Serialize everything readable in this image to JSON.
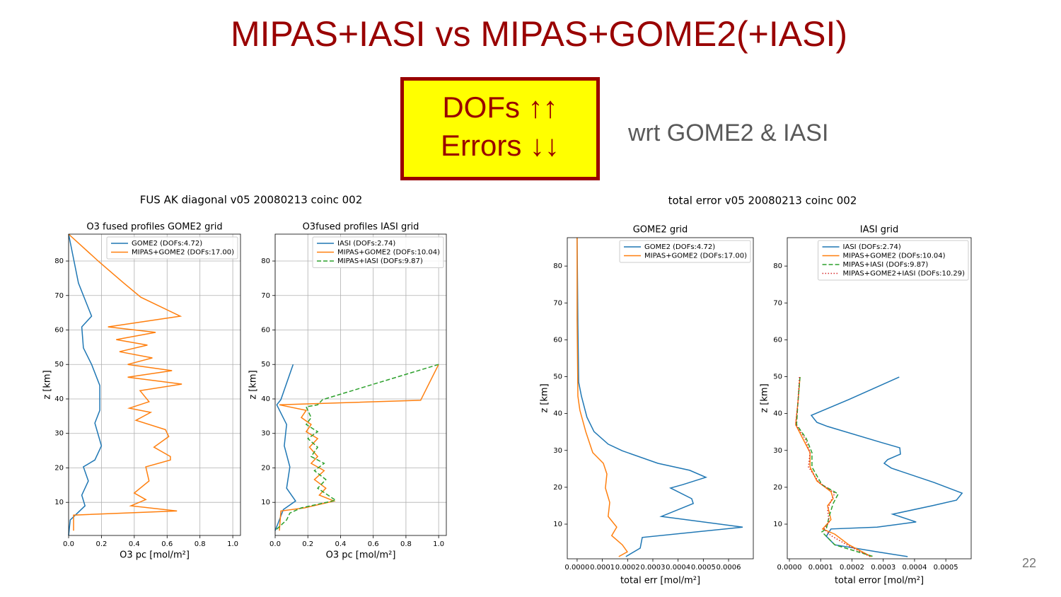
{
  "slide": {
    "title": "MIPAS+IASI vs MIPAS+GOME2(+IASI)",
    "box": [
      "DOFs ↑↑",
      "Errors ↓↓"
    ],
    "note": "wrt GOME2 & IASI",
    "page": "22",
    "figures": [
      "FUS AK diagonal v05 20080213 coinc 002",
      "total error v05 20080213 coinc 002"
    ]
  },
  "chart_data": [
    {
      "type": "line",
      "title": "O3 fused profiles GOME2 grid",
      "xlabel": "O3 pc [mol/m²]",
      "ylabel": "z [km]",
      "xlim": [
        0,
        1.047
      ],
      "ylim": [
        0.4,
        87.8
      ],
      "xticks": [
        {
          "value": 0,
          "label": "0.0"
        },
        {
          "value": 0.2,
          "label": "0.2"
        },
        {
          "value": 0.4,
          "label": "0.4"
        },
        {
          "value": 0.6,
          "label": "0.6"
        },
        {
          "value": 0.8,
          "label": "0.8"
        },
        {
          "value": 1,
          "label": "1.0"
        }
      ],
      "yticks": [
        10,
        20,
        30,
        40,
        50,
        60,
        70,
        80
      ],
      "grid": true,
      "legend": "upper right",
      "series": [
        {
          "name": "GOME2 (DOFs:4.72)",
          "color": "#1f77b4",
          "style": "solid",
          "x": [
            0,
            0.06,
            0.14,
            0.08,
            0.09,
            0.14,
            0.19,
            0.19,
            0.16,
            0.2,
            0.16,
            0.09,
            0.12,
            0.08,
            0.1,
            0.01,
            0
          ],
          "y": [
            87.8,
            73.6,
            64.0,
            60.9,
            54.8,
            50.0,
            43.9,
            36.7,
            33.0,
            26.4,
            22.3,
            20.3,
            16.2,
            12.1,
            9.0,
            4.9,
            0.4
          ]
        },
        {
          "name": "MIPAS+GOME2 (DOFs:17.00)",
          "color": "#ff7f0e",
          "style": "solid",
          "x": [
            0,
            0.185,
            0.336,
            0.44,
            0.68,
            0.24,
            0.53,
            0.29,
            0.48,
            0.31,
            0.51,
            0.36,
            0.63,
            0.36,
            0.69,
            0.435,
            0.49,
            0.37,
            0.5,
            0.41,
            0.59,
            0.61,
            0.52,
            0.62,
            0.62,
            0.47,
            0.49,
            0.4,
            0.47,
            0.38,
            0.66,
            0.03,
            0.03
          ],
          "y": [
            87.8,
            79.8,
            73.6,
            69.5,
            64.0,
            60.9,
            59.3,
            57.2,
            55.6,
            53.7,
            51.9,
            50.0,
            48.2,
            46.3,
            44.3,
            42.4,
            39.2,
            37.3,
            36.1,
            33.8,
            31.1,
            29.1,
            26.0,
            23.3,
            22.3,
            20.3,
            16.2,
            12.7,
            10.8,
            9.0,
            7.5,
            6.3,
            1.8
          ]
        }
      ]
    },
    {
      "type": "line",
      "title": "O3fused profiles IASI grid",
      "xlabel": "O3 pc [mol/m²]",
      "ylabel": "z [km]",
      "xlim": [
        0,
        1.047
      ],
      "ylim": [
        0.4,
        87.8
      ],
      "xticks": [
        {
          "value": 0,
          "label": "0.0"
        },
        {
          "value": 0.2,
          "label": "0.2"
        },
        {
          "value": 0.4,
          "label": "0.4"
        },
        {
          "value": 0.6,
          "label": "0.6"
        },
        {
          "value": 0.8,
          "label": "0.8"
        },
        {
          "value": 1,
          "label": "1.0"
        }
      ],
      "yticks": [
        10,
        20,
        30,
        40,
        50,
        60,
        70,
        80
      ],
      "grid": true,
      "legend": "upper right",
      "series": [
        {
          "name": "IASI (DOFs:2.74)",
          "color": "#1f77b4",
          "style": "solid",
          "x": [
            0.11,
            0.035,
            0.01,
            0.07,
            0.056,
            0.09,
            0.07,
            0.125,
            0.05,
            0.017,
            0
          ],
          "y": [
            50.0,
            39.8,
            38.3,
            32.6,
            26.4,
            20.3,
            14.1,
            10.4,
            7.9,
            3.8,
            1.8
          ]
        },
        {
          "name": "MIPAS+GOME2 (DOFs:10.04)",
          "color": "#ff7f0e",
          "style": "solid",
          "x": [
            1.0,
            0.89,
            0.026,
            0.19,
            0.16,
            0.22,
            0.19,
            0.26,
            0.21,
            0.26,
            0.22,
            0.3,
            0.24,
            0.31,
            0.27,
            0.36,
            0.18,
            0.035,
            0.026
          ],
          "y": [
            50.0,
            39.6,
            38.3,
            36.7,
            34.6,
            32.6,
            30.5,
            28.5,
            26.0,
            23.3,
            21.3,
            19.2,
            16.6,
            14.1,
            12.1,
            10.4,
            8.4,
            7.5,
            1.8
          ]
        },
        {
          "name": "MIPAS+IASI (DOFs:9.87)",
          "color": "#2ca02c",
          "style": "dashed",
          "x": [
            1.0,
            0.29,
            0.26,
            0.19,
            0.22,
            0.19,
            0.26,
            0.2,
            0.26,
            0.22,
            0.3,
            0.24,
            0.31,
            0.26,
            0.37,
            0.16,
            0.09,
            0.07,
            0
          ],
          "y": [
            50.0,
            39.8,
            38.3,
            37.7,
            34.6,
            32.6,
            30.5,
            28.5,
            26.0,
            23.3,
            21.3,
            19.2,
            16.6,
            14.1,
            10.6,
            8.4,
            6.9,
            4.9,
            1.8
          ]
        }
      ]
    },
    {
      "type": "line",
      "title": "GOME2 grid",
      "xlabel": "total err [mol/m²]",
      "ylabel": "z [km]",
      "xlim": [
        -3.9e-05,
        0.000698
      ],
      "ylim": [
        0.6,
        87.7
      ],
      "xticks": [
        {
          "value": 0,
          "label": "0.0000"
        },
        {
          "value": 0.0001,
          "label": "0.0001"
        },
        {
          "value": 0.0002,
          "label": "0.0002"
        },
        {
          "value": 0.0003,
          "label": "0.0003"
        },
        {
          "value": 0.0004,
          "label": "0.0004"
        },
        {
          "value": 0.0005,
          "label": "0.0005"
        },
        {
          "value": 0.0006,
          "label": "0.0006"
        }
      ],
      "yticks": [
        10,
        20,
        30,
        40,
        50,
        60,
        70,
        80
      ],
      "grid": false,
      "legend": "upper right",
      "series": [
        {
          "name": "GOME2 (DOFs:4.72)",
          "color": "#1f77b4",
          "style": "solid",
          "x": [
            0,
            3e-06,
            6e-06,
            1.7e-05,
            3.9e-05,
            6.7e-05,
            0.000123,
            0.000179,
            0.00032,
            0.000446,
            0.00051,
            0.000418,
            0.00037,
            0.000454,
            0.00046,
            0.000334,
            0.000656,
            0.000258,
            0.00025,
            0.000193
          ],
          "y": [
            87.7,
            63.9,
            48.5,
            44.7,
            39.0,
            35.1,
            31.7,
            29.9,
            26.5,
            24.6,
            22.7,
            20.7,
            19.8,
            16.9,
            15.6,
            12.1,
            9.2,
            6.4,
            3.5,
            1.2
          ]
        },
        {
          "name": "MIPAS+GOME2 (DOFs:17.00)",
          "color": "#ff7f0e",
          "style": "solid",
          "x": [
            0,
            0,
            3e-06,
            1.1e-05,
            3.4e-05,
            6.2e-05,
            0.000104,
            0.000118,
            0.000112,
            0.000129,
            0.000123,
            0.000157,
            0.000137,
            0.000179,
            0.000199,
            0.000165
          ],
          "y": [
            87.7,
            65.8,
            44.7,
            40.9,
            35.1,
            29.4,
            26.5,
            23.6,
            19.8,
            15.9,
            12.1,
            9.2,
            6.9,
            4.4,
            2.5,
            1.2
          ]
        }
      ]
    },
    {
      "type": "line",
      "title": "IASI grid",
      "xlabel": "total error [mol/m²]",
      "ylabel": "z [km]",
      "xlim": [
        -6.8e-06,
        0.000581
      ],
      "ylim": [
        0.6,
        87.7
      ],
      "xticks": [
        {
          "value": 0,
          "label": "0.0000"
        },
        {
          "value": 0.0001,
          "label": "0.0001"
        },
        {
          "value": 0.0002,
          "label": "0.0002"
        },
        {
          "value": 0.0003,
          "label": "0.0003"
        },
        {
          "value": 0.0004,
          "label": "0.0004"
        },
        {
          "value": 0.0005,
          "label": "0.0005"
        }
      ],
      "yticks": [
        10,
        20,
        30,
        40,
        50,
        60,
        70,
        80
      ],
      "grid": false,
      "legend": "upper right",
      "series": [
        {
          "name": "IASI (DOFs:2.74)",
          "color": "#1f77b4",
          "style": "solid",
          "x": [
            0.000351,
            0.00019,
            7e-05,
            8.8e-05,
            0.000122,
            0.000292,
            0.000353,
            0.000355,
            0.000314,
            0.000303,
            0.000326,
            0.000462,
            0.000552,
            0.000534,
            0.000457,
            0.00033,
            0.000405,
            0.00028,
            0.000133,
            0.000118,
            0.000145,
            0.00028,
            0.000378
          ],
          "y": [
            49.9,
            43.8,
            39.5,
            37.6,
            36.5,
            32.2,
            30.7,
            29.0,
            27.5,
            26.5,
            25.2,
            21.3,
            18.4,
            16.5,
            15.0,
            12.7,
            10.6,
            9.2,
            8.7,
            6.7,
            4.4,
            2.5,
            1.2
          ]
        },
        {
          "name": "MIPAS+GOME2 (DOFs:10.04)",
          "color": "#ff7f0e",
          "style": "solid",
          "x": [
            3.4e-05,
            2.7e-05,
            2e-05,
            4.3e-05,
            6.6e-05,
            6.6e-05,
            8.8e-05,
            0.000133,
            0.00014,
            0.000122,
            0.000133,
            0.000106,
            0.000145,
            0.00019,
            0.000262
          ],
          "y": [
            49.9,
            42.8,
            37.0,
            33.2,
            29.4,
            25.5,
            21.7,
            18.8,
            16.9,
            15.0,
            11.2,
            8.7,
            7.3,
            4.4,
            1.2
          ]
        },
        {
          "name": "MIPAS+IASI (DOFs:9.87)",
          "color": "#2ca02c",
          "style": "dashed",
          "x": [
            3.4e-05,
            2.7e-05,
            2.3e-05,
            5.4e-05,
            7.2e-05,
            7.2e-05,
            0.000104,
            0.000156,
            0.00014,
            0.000127,
            0.000118,
            0.000104,
            0.000145,
            0.000269
          ],
          "y": [
            49.9,
            42.8,
            37.0,
            33.2,
            29.4,
            25.5,
            20.7,
            18.2,
            15.6,
            12.1,
            8.7,
            7.9,
            4.4,
            1.2
          ]
        },
        {
          "name": "MIPAS+GOME2+IASI (DOFs:10.29)",
          "color": "#d62728",
          "style": "dotted",
          "x": [
            3.2e-05,
            2.7e-05,
            2e-05,
            5e-05,
            6.6e-05,
            6.1e-05,
            9.5e-05,
            0.000145,
            0.000133,
            0.000122,
            0.000127,
            0.000111,
            0.000133,
            0.00019,
            0.000258
          ],
          "y": [
            49.9,
            42.8,
            37.0,
            33.2,
            29.4,
            25.5,
            21.3,
            18.4,
            16.3,
            14.0,
            10.6,
            8.7,
            6.9,
            4.1,
            1.2
          ]
        }
      ]
    }
  ]
}
